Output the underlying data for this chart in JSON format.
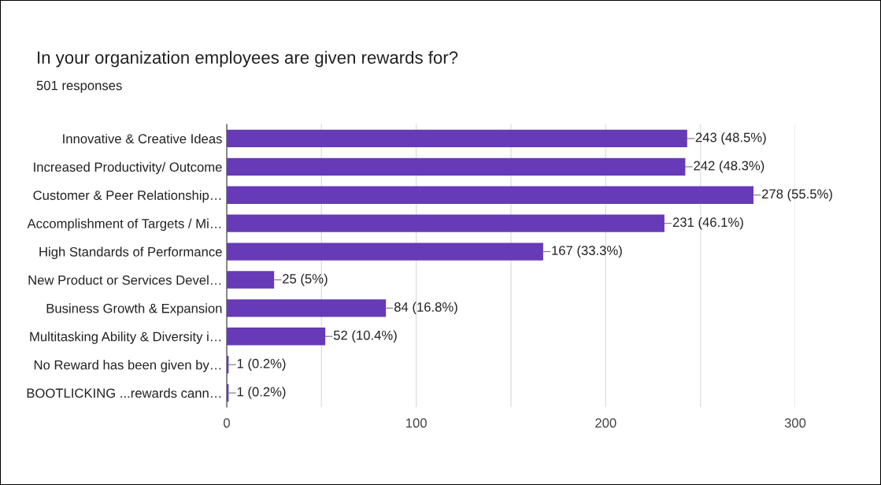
{
  "chart_data": {
    "type": "bar",
    "orientation": "horizontal",
    "title": "In your organization employees are given rewards for?",
    "subtitle": "501 responses",
    "categories": [
      "Innovative & Creative Ideas",
      "Increased Productivity/ Outcome",
      "Customer & Peer Relationship…",
      "Accomplishment of Targets / Mi…",
      "High Standards of Performance",
      "New Product or Services Devel…",
      "Business Growth & Expansion",
      "Multitasking Ability & Diversity i…",
      "No Reward has been given by…",
      "BOOTLICKING ...rewards cann…"
    ],
    "values": [
      243,
      242,
      278,
      231,
      167,
      25,
      84,
      52,
      1,
      1
    ],
    "value_labels": [
      "243 (48.5%)",
      "242 (48.3%)",
      "278 (55.5%)",
      "231 (46.1%)",
      "167 (33.3%)",
      "25 (5%)",
      "84 (16.8%)",
      "52 (10.4%)",
      "1 (0.2%)",
      "1 (0.2%)"
    ],
    "color": "#673ab7",
    "xlim": [
      0,
      300
    ],
    "xticks": [
      0,
      {
        "value": 50,
        "label": null
      },
      100,
      {
        "value": 150,
        "label": null
      },
      200,
      {
        "value": 250,
        "label": null
      },
      300
    ],
    "grid": "x"
  }
}
